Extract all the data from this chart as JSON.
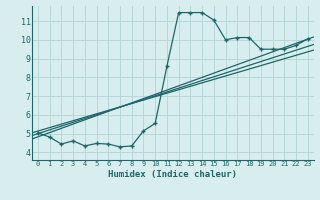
{
  "title": "",
  "xlabel": "Humidex (Indice chaleur)",
  "bg_color": "#d8eeee",
  "grid_color": "#b8d8d8",
  "line_color": "#1a6868",
  "xlim": [
    -0.5,
    23.5
  ],
  "ylim": [
    3.6,
    11.8
  ],
  "xticks": [
    0,
    1,
    2,
    3,
    4,
    5,
    6,
    7,
    8,
    9,
    10,
    11,
    12,
    13,
    14,
    15,
    16,
    17,
    18,
    19,
    20,
    21,
    22,
    23
  ],
  "yticks": [
    4,
    5,
    6,
    7,
    8,
    9,
    10,
    11
  ],
  "line1_x": [
    0,
    1,
    2,
    3,
    4,
    5,
    6,
    7,
    8,
    9,
    10,
    11,
    12,
    13,
    14,
    15,
    16,
    17,
    18,
    19,
    20,
    21,
    22,
    23
  ],
  "line1_y": [
    5.05,
    4.82,
    4.45,
    4.62,
    4.35,
    4.48,
    4.45,
    4.3,
    4.35,
    5.15,
    5.55,
    8.6,
    11.45,
    11.45,
    11.45,
    11.05,
    10.0,
    10.12,
    10.12,
    9.5,
    9.5,
    9.5,
    9.7,
    10.05
  ],
  "line2_x": [
    -0.5,
    23.5
  ],
  "line2_y": [
    4.72,
    10.15
  ],
  "line3_x": [
    -0.5,
    23.5
  ],
  "line3_y": [
    4.9,
    9.75
  ],
  "line4_x": [
    -0.5,
    23.5
  ],
  "line4_y": [
    5.05,
    9.45
  ],
  "xtick_fontsize": 5.0,
  "ytick_fontsize": 6.0,
  "xlabel_fontsize": 6.5
}
